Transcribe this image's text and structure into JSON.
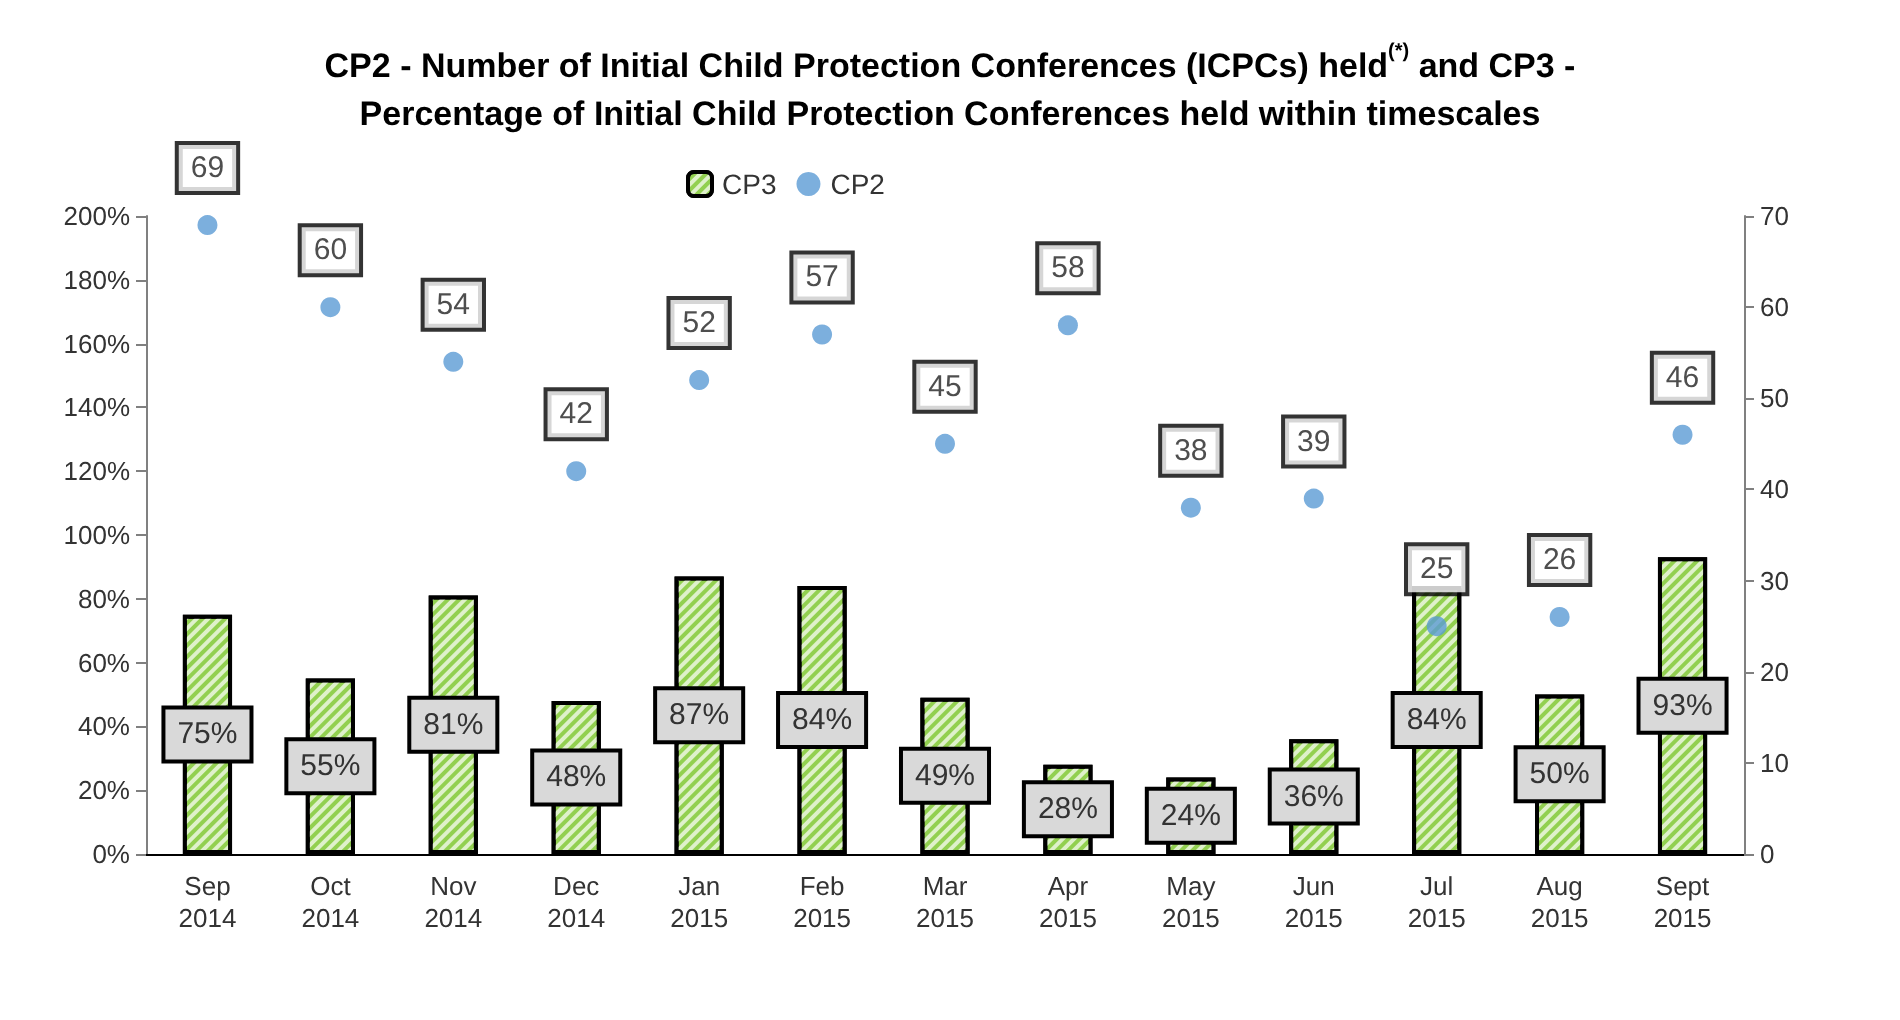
{
  "chart_data": {
    "type": "bar",
    "title": "CP2 - Number of Initial Child Protection Conferences (ICPCs) held$^{(*)}$ and CP3 -\nPercentage of Initial Child Protection Conferences held within timescales",
    "categories": [
      "Sep\n2014",
      "Oct\n2014",
      "Nov\n2014",
      "Dec\n2014",
      "Jan\n2015",
      "Feb\n2015",
      "Mar\n2015",
      "Apr\n2015",
      "May\n2015",
      "Jun\n2015",
      "Jul\n2015",
      "Aug\n2015",
      "Sept\n2015"
    ],
    "series": [
      {
        "name": "CP3",
        "color": "#92d050",
        "values": [
          75,
          55,
          81,
          48,
          87,
          84,
          49,
          28,
          24,
          36,
          84,
          50,
          93
        ],
        "value_labels": [
          "75%",
          "55%",
          "81%",
          "48%",
          "87%",
          "84%",
          "49%",
          "28%",
          "24%",
          "36%",
          "84%",
          "50%",
          "93%"
        ]
      },
      {
        "name": "CP2",
        "type": "scatter",
        "axis": "y2",
        "color": "#5b9bd5",
        "marker": "circle",
        "values": [
          69,
          60,
          54,
          42,
          52,
          57,
          45,
          58,
          38,
          39,
          25,
          26,
          46
        ],
        "data_labels": true
      }
    ],
    "ylim": [
      0,
      200
    ],
    "yticks": [
      {
        "value": 0,
        "label": "0%"
      },
      {
        "value": 20,
        "label": "20%"
      },
      {
        "value": 40,
        "label": "40%"
      },
      {
        "value": 60,
        "label": "60%"
      },
      {
        "value": 80,
        "label": "80%"
      },
      {
        "value": 100,
        "label": "100%"
      },
      {
        "value": 120,
        "label": "120%"
      },
      {
        "value": 140,
        "label": "140%"
      },
      {
        "value": 160,
        "label": "160%"
      },
      {
        "value": 180,
        "label": "180%"
      },
      {
        "value": 200,
        "label": "200%"
      }
    ],
    "y2lim": [
      0,
      70
    ],
    "y2ticks": [
      0,
      10,
      20,
      30,
      40,
      50,
      60,
      70
    ],
    "legend": "top",
    "grid": false
  }
}
